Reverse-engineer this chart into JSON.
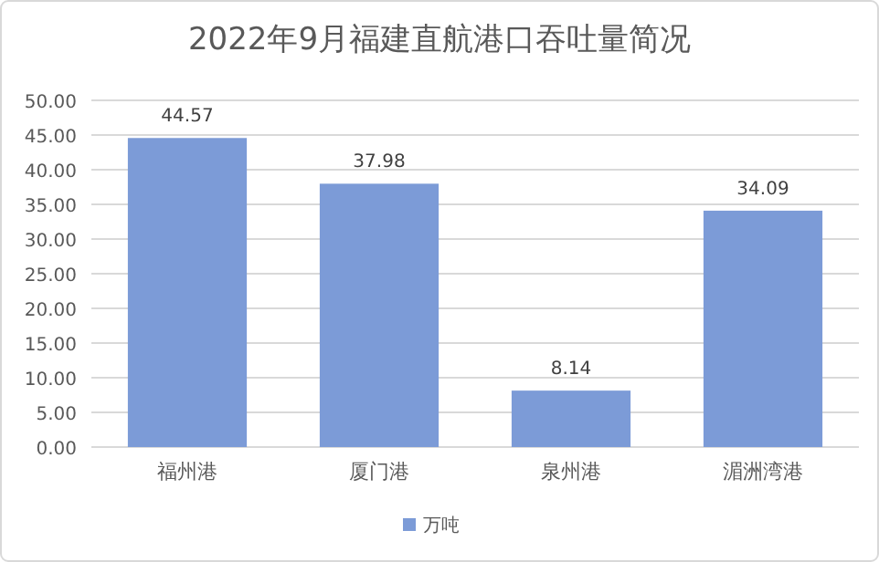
{
  "chart_data": {
    "type": "bar",
    "title": "2022年9月福建直航港口吞吐量简况",
    "categories": [
      "福州港",
      "厦门港",
      "泉州港",
      "湄洲湾港"
    ],
    "series": [
      {
        "name": "万吨",
        "color": "#7c9bd7",
        "values": [
          44.57,
          37.98,
          8.14,
          34.09
        ]
      }
    ],
    "ylim": [
      0,
      50
    ],
    "yticks": [
      {
        "value": 0,
        "label": "0.00"
      },
      {
        "value": 5,
        "label": "5.00"
      },
      {
        "value": 10,
        "label": "10.00"
      },
      {
        "value": 15,
        "label": "15.00"
      },
      {
        "value": 20,
        "label": "20.00"
      },
      {
        "value": 25,
        "label": "25.00"
      },
      {
        "value": 30,
        "label": "30.00"
      },
      {
        "value": 35,
        "label": "35.00"
      },
      {
        "value": 40,
        "label": "40.00"
      },
      {
        "value": 45,
        "label": "45.00"
      },
      {
        "value": 50,
        "label": "50.00"
      }
    ],
    "grid": "y",
    "legend": "bottom",
    "data_labels": true
  }
}
